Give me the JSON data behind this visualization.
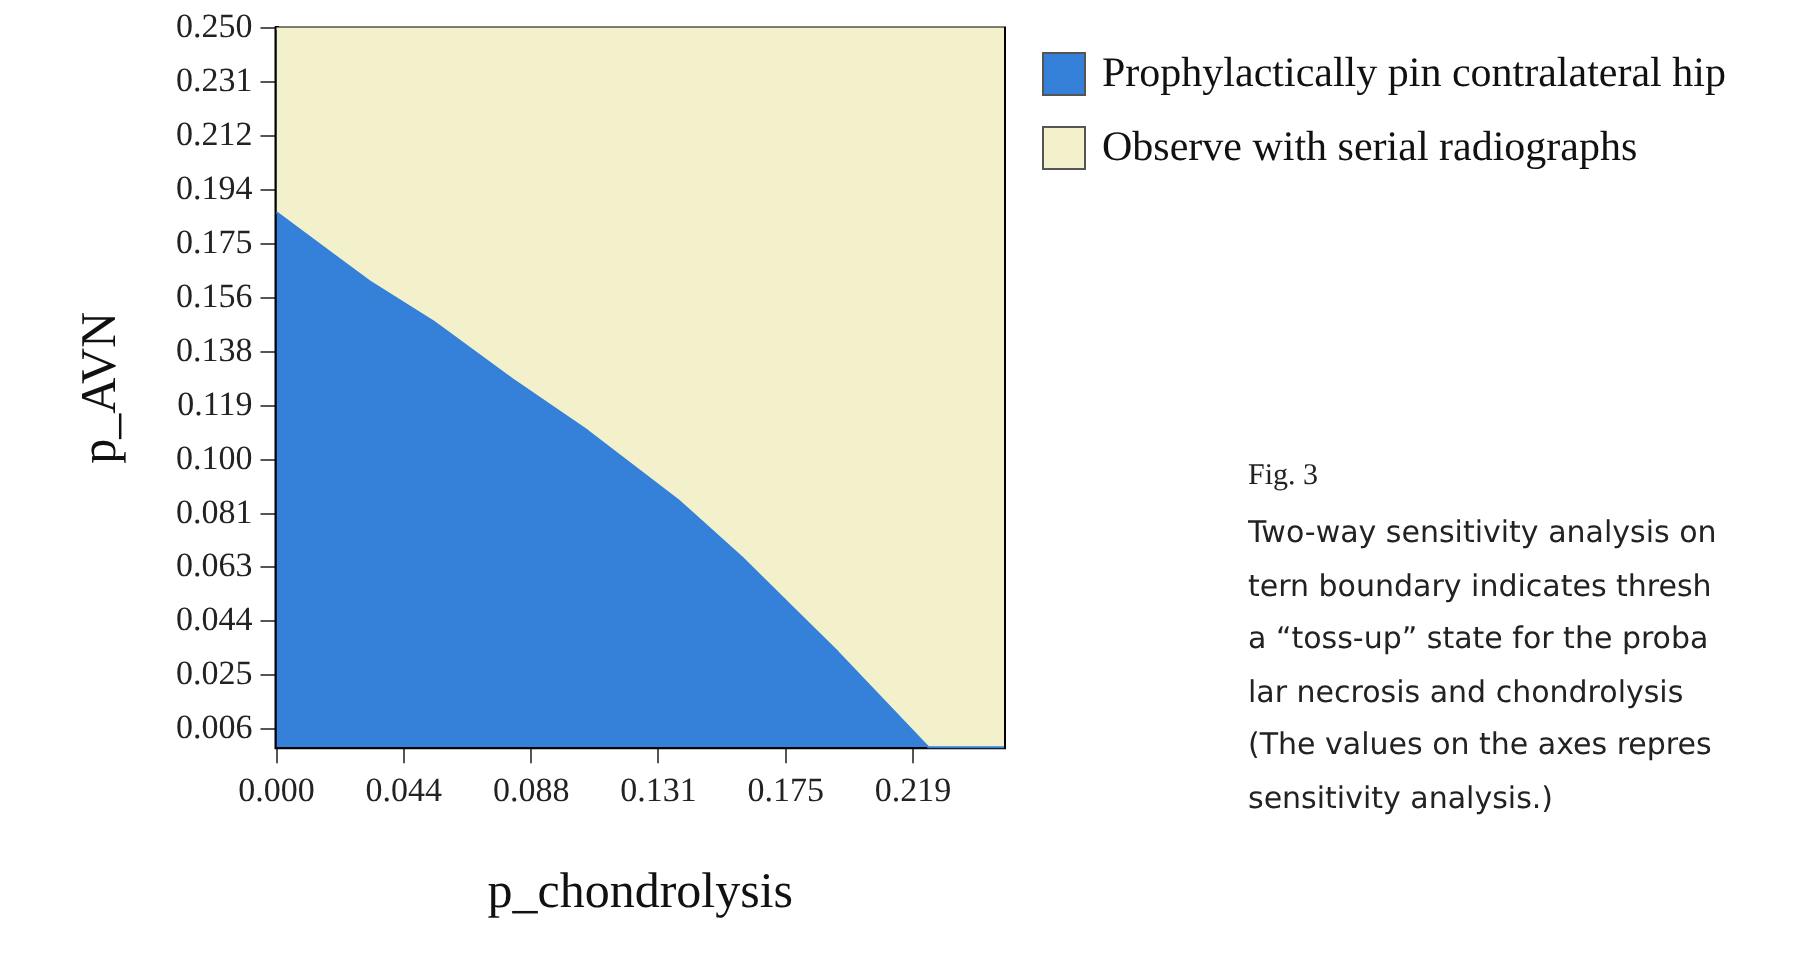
{
  "chart_data": {
    "type": "area",
    "stacked": true,
    "xlabel": "p_chondrolysis",
    "ylabel": "p_AVN",
    "xlim": [
      0,
      0.25
    ],
    "ylim": [
      0,
      0.25
    ],
    "xticks": [
      {
        "value": 0,
        "label": "0.000"
      },
      {
        "value": 0.04375,
        "label": "0.044"
      },
      {
        "value": 0.0875,
        "label": "0.088"
      },
      {
        "value": 0.13125,
        "label": "0.131"
      },
      {
        "value": 0.175,
        "label": "0.175"
      },
      {
        "value": 0.21875,
        "label": "0.219"
      }
    ],
    "yticks": [
      {
        "value": 0.00625,
        "label": "0.006"
      },
      {
        "value": 0.025,
        "label": "0.025"
      },
      {
        "value": 0.04375,
        "label": "0.044"
      },
      {
        "value": 0.0625,
        "label": "0.063"
      },
      {
        "value": 0.08125,
        "label": "0.081"
      },
      {
        "value": 0.1,
        "label": "0.100"
      },
      {
        "value": 0.11875,
        "label": "0.119"
      },
      {
        "value": 0.1375,
        "label": "0.138"
      },
      {
        "value": 0.15625,
        "label": "0.156"
      },
      {
        "value": 0.175,
        "label": "0.175"
      },
      {
        "value": 0.19375,
        "label": "0.194"
      },
      {
        "value": 0.2125,
        "label": "0.212"
      },
      {
        "value": 0.23125,
        "label": "0.231"
      },
      {
        "value": 0.25,
        "label": "0.250"
      }
    ],
    "x": [
      0,
      0.032,
      0.054,
      0.081,
      0.107,
      0.138,
      0.16,
      0.178,
      0.193,
      0.224,
      0.25
    ],
    "series": [
      {
        "name": "Prophylactically pin contralateral hip",
        "color": "#3580d8",
        "values": [
          0.186,
          0.162,
          0.148,
          0.128,
          0.11,
          0.086,
          0.066,
          0.048,
          0.033,
          0,
          0
        ]
      },
      {
        "name": "Observe with serial radiographs",
        "color": "#f2f1cb",
        "values": [
          0.064,
          0.088,
          0.102,
          0.122,
          0.14,
          0.164,
          0.184,
          0.202,
          0.217,
          0.25,
          0.25
        ]
      }
    ],
    "legend": "top right",
    "annotations": [
      "Fig. 3",
      "Two-way sensitivity analysis on",
      "tern boundary indicates thresh",
      "a “toss-up” state for the proba",
      "lar necrosis and chondrolysis",
      "(The values on the axes repres",
      "sensitivity analysis.)"
    ]
  }
}
